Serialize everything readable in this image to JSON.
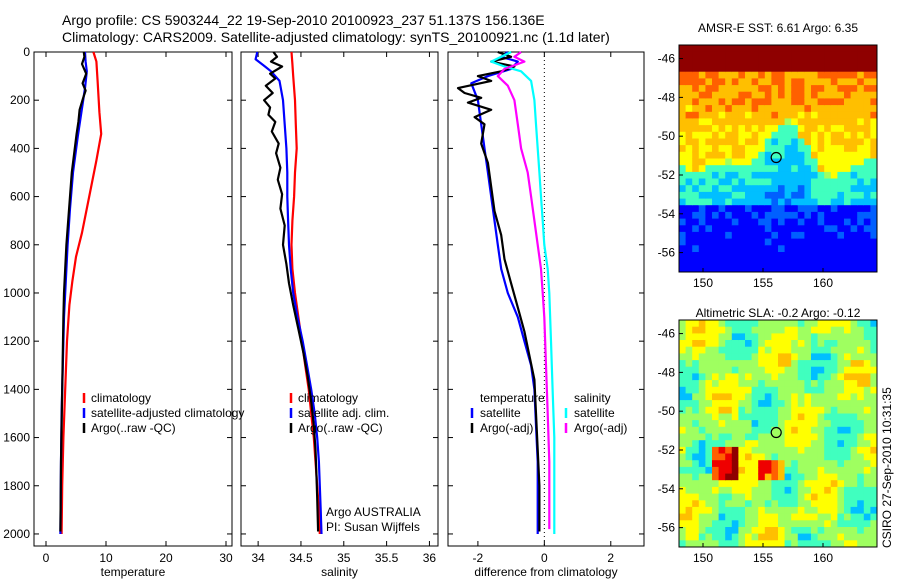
{
  "header": {
    "line1": "Argo profile: CS 5903244_22 19-Sep-2010 20100923_237 51.137S 156.136E",
    "line2": "Climatology: CARS2009. Satellite-adjusted climatology: synTS_20100921.nc (1.1d later)"
  },
  "credits": {
    "argo": "Argo AUSTRALIA",
    "pi": "PI: Susan Wijffels",
    "csiro": "CSIRO 27-Sep-2010 10:31:35"
  },
  "colors": {
    "climatology": "#ff0000",
    "satellite": "#0000ff",
    "argo": "#000000",
    "satellite_salinity": "#00ffff",
    "argo_adj_salinity": "#ff00ff"
  },
  "chart_data": [
    {
      "type": "line",
      "id": "temperature",
      "xlabel": "temperature",
      "xlim": [
        -2,
        31
      ],
      "xticks": [
        0,
        10,
        20,
        30
      ],
      "ylim": [
        2050,
        0
      ],
      "yticks": [
        0,
        200,
        400,
        600,
        800,
        1000,
        1200,
        1400,
        1600,
        1800,
        2000
      ],
      "legend": [
        "climatology",
        "satellite-adjusted climatology",
        "Argo(..raw -QC)"
      ],
      "series": [
        {
          "name": "climatology",
          "color": "#ff0000",
          "points": [
            [
              7.9,
              0
            ],
            [
              8.4,
              40
            ],
            [
              8.6,
              120
            ],
            [
              8.9,
              250
            ],
            [
              9.2,
              340
            ],
            [
              8.4,
              450
            ],
            [
              7.2,
              600
            ],
            [
              6.0,
              750
            ],
            [
              5.0,
              850
            ],
            [
              4.4,
              950
            ],
            [
              3.9,
              1050
            ],
            [
              3.5,
              1200
            ],
            [
              3.2,
              1400
            ],
            [
              2.9,
              1600
            ],
            [
              2.7,
              1800
            ],
            [
              2.6,
              2000
            ]
          ]
        },
        {
          "name": "satellite-adjusted climatology",
          "color": "#0000ff",
          "points": [
            [
              6.5,
              0
            ],
            [
              6.6,
              40
            ],
            [
              6.8,
              80
            ],
            [
              6.5,
              150
            ],
            [
              5.9,
              250
            ],
            [
              5.3,
              350
            ],
            [
              4.5,
              500
            ],
            [
              4.0,
              650
            ],
            [
              3.6,
              800
            ],
            [
              3.3,
              950
            ],
            [
              3.0,
              1100
            ],
            [
              2.8,
              1300
            ],
            [
              2.6,
              1500
            ],
            [
              2.5,
              1700
            ],
            [
              2.4,
              2000
            ]
          ]
        },
        {
          "name": "Argo(..raw -QC)",
          "color": "#000000",
          "points": [
            [
              6.3,
              0
            ],
            [
              6.4,
              20
            ],
            [
              6.0,
              50
            ],
            [
              6.7,
              90
            ],
            [
              6.1,
              130
            ],
            [
              6.6,
              160
            ],
            [
              6.2,
              190
            ],
            [
              5.6,
              240
            ],
            [
              5.4,
              290
            ],
            [
              5.1,
              340
            ],
            [
              4.7,
              420
            ],
            [
              4.3,
              500
            ],
            [
              4.0,
              600
            ],
            [
              3.7,
              700
            ],
            [
              3.4,
              800
            ],
            [
              3.2,
              900
            ],
            [
              3.0,
              1000
            ],
            [
              2.9,
              1100
            ],
            [
              2.8,
              1250
            ],
            [
              2.7,
              1400
            ],
            [
              2.6,
              1550
            ],
            [
              2.5,
              1700
            ],
            [
              2.45,
              1850
            ],
            [
              2.4,
              1990
            ]
          ]
        }
      ]
    },
    {
      "type": "line",
      "id": "salinity",
      "xlabel": "salinity",
      "xlim": [
        33.8,
        36.1
      ],
      "xticks": [
        34,
        34.5,
        35,
        35.5,
        36
      ],
      "xtick_labels": [
        "34",
        "34.5",
        "35",
        "35.5",
        "36"
      ],
      "ylim": [
        2050,
        0
      ],
      "yticks": [
        0,
        200,
        400,
        600,
        800,
        1000,
        1200,
        1400,
        1600,
        1800,
        2000
      ],
      "legend": [
        "climatology",
        "satellite adj. clim.",
        "Argo(..raw -QC)"
      ],
      "series": [
        {
          "name": "climatology",
          "color": "#ff0000",
          "points": [
            [
              34.39,
              0
            ],
            [
              34.4,
              50
            ],
            [
              34.41,
              100
            ],
            [
              34.43,
              200
            ],
            [
              34.44,
              300
            ],
            [
              34.45,
              400
            ],
            [
              34.43,
              500
            ],
            [
              34.42,
              600
            ],
            [
              34.4,
              700
            ],
            [
              34.39,
              800
            ],
            [
              34.4,
              900
            ],
            [
              34.43,
              1000
            ],
            [
              34.47,
              1100
            ],
            [
              34.51,
              1200
            ],
            [
              34.55,
              1300
            ],
            [
              34.59,
              1400
            ],
            [
              34.62,
              1500
            ],
            [
              34.65,
              1600
            ],
            [
              34.67,
              1700
            ],
            [
              34.69,
              1800
            ],
            [
              34.71,
              1900
            ],
            [
              34.72,
              2000
            ]
          ]
        },
        {
          "name": "satellite adj. clim.",
          "color": "#0000ff",
          "points": [
            [
              33.99,
              0
            ],
            [
              33.97,
              30
            ],
            [
              34.08,
              60
            ],
            [
              34.15,
              80
            ],
            [
              34.25,
              120
            ],
            [
              34.29,
              200
            ],
            [
              34.31,
              300
            ],
            [
              34.33,
              400
            ],
            [
              34.34,
              500
            ],
            [
              34.34,
              600
            ],
            [
              34.35,
              700
            ],
            [
              34.36,
              800
            ],
            [
              34.38,
              900
            ],
            [
              34.41,
              1000
            ],
            [
              34.46,
              1100
            ],
            [
              34.52,
              1200
            ],
            [
              34.57,
              1300
            ],
            [
              34.62,
              1400
            ],
            [
              34.66,
              1500
            ],
            [
              34.69,
              1600
            ],
            [
              34.71,
              1700
            ],
            [
              34.72,
              1800
            ],
            [
              34.73,
              1900
            ],
            [
              34.74,
              2000
            ]
          ]
        },
        {
          "name": "Argo(..raw -QC)",
          "color": "#000000",
          "points": [
            [
              34.18,
              0
            ],
            [
              34.22,
              20
            ],
            [
              34.15,
              40
            ],
            [
              34.28,
              60
            ],
            [
              34.14,
              90
            ],
            [
              34.2,
              110
            ],
            [
              34.09,
              140
            ],
            [
              34.17,
              170
            ],
            [
              34.07,
              200
            ],
            [
              34.14,
              230
            ],
            [
              34.12,
              260
            ],
            [
              34.2,
              290
            ],
            [
              34.16,
              330
            ],
            [
              34.24,
              380
            ],
            [
              34.21,
              420
            ],
            [
              34.26,
              480
            ],
            [
              34.23,
              530
            ],
            [
              34.28,
              590
            ],
            [
              34.26,
              650
            ],
            [
              34.31,
              720
            ],
            [
              34.29,
              800
            ],
            [
              34.33,
              880
            ],
            [
              34.36,
              960
            ],
            [
              34.41,
              1050
            ],
            [
              34.47,
              1150
            ],
            [
              34.53,
              1250
            ],
            [
              34.58,
              1350
            ],
            [
              34.62,
              1450
            ],
            [
              34.65,
              1550
            ],
            [
              34.67,
              1650
            ],
            [
              34.68,
              1750
            ],
            [
              34.69,
              1850
            ],
            [
              34.7,
              1990
            ]
          ]
        }
      ]
    },
    {
      "type": "line",
      "id": "difference",
      "xlabel": "difference from climatology",
      "xlim": [
        -2.9,
        3.0
      ],
      "xticks": [
        -2,
        0,
        2
      ],
      "ylim": [
        2050,
        0
      ],
      "yticks": [
        0,
        200,
        400,
        600,
        800,
        1000,
        1200,
        1400,
        1600,
        1800,
        2000
      ],
      "zero_line": true,
      "legend_left_title": "temperature",
      "legend_left": [
        "satellite",
        "Argo(-adj)"
      ],
      "legend_right_title": "salinity",
      "legend_right": [
        "satellite",
        "Argo(-adj)"
      ],
      "series": [
        {
          "name": "temperature satellite",
          "color": "#0000ff",
          "points": [
            [
              -1.1,
              0
            ],
            [
              -1.3,
              20
            ],
            [
              -0.8,
              40
            ],
            [
              -1.0,
              70
            ],
            [
              -1.7,
              100
            ],
            [
              -2.2,
              130
            ],
            [
              -2.0,
              200
            ],
            [
              -1.9,
              300
            ],
            [
              -1.8,
              400
            ],
            [
              -1.7,
              500
            ],
            [
              -1.6,
              600
            ],
            [
              -1.5,
              700
            ],
            [
              -1.4,
              800
            ],
            [
              -1.3,
              900
            ],
            [
              -1.1,
              1000
            ],
            [
              -0.8,
              1100
            ],
            [
              -0.6,
              1200
            ],
            [
              -0.4,
              1300
            ],
            [
              -0.3,
              1400
            ],
            [
              -0.25,
              1550
            ],
            [
              -0.2,
              1700
            ],
            [
              -0.2,
              1850
            ],
            [
              -0.2,
              2000
            ]
          ]
        },
        {
          "name": "temperature Argo(-adj)",
          "color": "#000000",
          "points": [
            [
              -1.4,
              0
            ],
            [
              -1.0,
              20
            ],
            [
              -1.6,
              40
            ],
            [
              -0.9,
              60
            ],
            [
              -1.3,
              80
            ],
            [
              -2.0,
              100
            ],
            [
              -1.6,
              120
            ],
            [
              -2.6,
              150
            ],
            [
              -2.4,
              170
            ],
            [
              -1.9,
              190
            ],
            [
              -2.3,
              210
            ],
            [
              -1.6,
              240
            ],
            [
              -2.1,
              270
            ],
            [
              -1.8,
              300
            ],
            [
              -1.9,
              380
            ],
            [
              -1.7,
              460
            ],
            [
              -1.6,
              560
            ],
            [
              -1.5,
              660
            ],
            [
              -1.3,
              760
            ],
            [
              -1.2,
              860
            ],
            [
              -1.0,
              960
            ],
            [
              -0.8,
              1060
            ],
            [
              -0.6,
              1160
            ],
            [
              -0.45,
              1260
            ],
            [
              -0.3,
              1360
            ],
            [
              -0.25,
              1500
            ],
            [
              -0.2,
              1650
            ],
            [
              -0.15,
              1800
            ],
            [
              -0.15,
              1990
            ]
          ]
        },
        {
          "name": "salinity satellite",
          "color": "#00ffff",
          "points": [
            [
              -1.0,
              0
            ],
            [
              -1.3,
              20
            ],
            [
              -1.6,
              40
            ],
            [
              -1.2,
              60
            ],
            [
              -0.7,
              80
            ],
            [
              -0.4,
              120
            ],
            [
              -0.3,
              200
            ],
            [
              -0.25,
              300
            ],
            [
              -0.2,
              400
            ],
            [
              -0.15,
              500
            ],
            [
              -0.1,
              600
            ],
            [
              -0.05,
              700
            ],
            [
              0.0,
              800
            ],
            [
              0.1,
              900
            ],
            [
              0.15,
              1000
            ],
            [
              0.2,
              1200
            ],
            [
              0.25,
              1400
            ],
            [
              0.3,
              1600
            ],
            [
              0.3,
              1800
            ],
            [
              0.3,
              2000
            ]
          ]
        },
        {
          "name": "salinity Argo(-adj)",
          "color": "#ff00ff",
          "points": [
            [
              -0.7,
              0
            ],
            [
              -0.9,
              20
            ],
            [
              -0.6,
              40
            ],
            [
              -1.2,
              70
            ],
            [
              -1.4,
              100
            ],
            [
              -1.1,
              140
            ],
            [
              -0.9,
              200
            ],
            [
              -0.8,
              300
            ],
            [
              -0.7,
              400
            ],
            [
              -0.5,
              500
            ],
            [
              -0.4,
              600
            ],
            [
              -0.3,
              700
            ],
            [
              -0.2,
              800
            ],
            [
              -0.1,
              900
            ],
            [
              -0.05,
              1000
            ],
            [
              0.0,
              1100
            ],
            [
              0.05,
              1300
            ],
            [
              0.1,
              1500
            ],
            [
              0.15,
              1700
            ],
            [
              0.15,
              1850
            ],
            [
              0.15,
              1980
            ]
          ]
        }
      ]
    },
    {
      "type": "heatmap",
      "id": "amsre-sst",
      "title": "AMSR-E SST: 6.61  Argo: 6.35",
      "xlim": [
        148,
        164.5
      ],
      "ylim": [
        -57,
        -45.3
      ],
      "xticks": [
        150,
        155,
        160
      ],
      "yticks": [
        -46,
        -48,
        -50,
        -52,
        -54,
        -56
      ],
      "marker": {
        "lon": 156.1,
        "lat": -51.1
      }
    },
    {
      "type": "heatmap",
      "id": "altimetric-sla",
      "title": "Altimetric SLA: -0.2  Argo: -0.12",
      "xlim": [
        148,
        164.5
      ],
      "ylim": [
        -57,
        -45.3
      ],
      "xticks": [
        150,
        155,
        160
      ],
      "yticks": [
        -46,
        -48,
        -50,
        -52,
        -54,
        -56
      ],
      "marker": {
        "lon": 156.1,
        "lat": -51.1
      }
    }
  ]
}
